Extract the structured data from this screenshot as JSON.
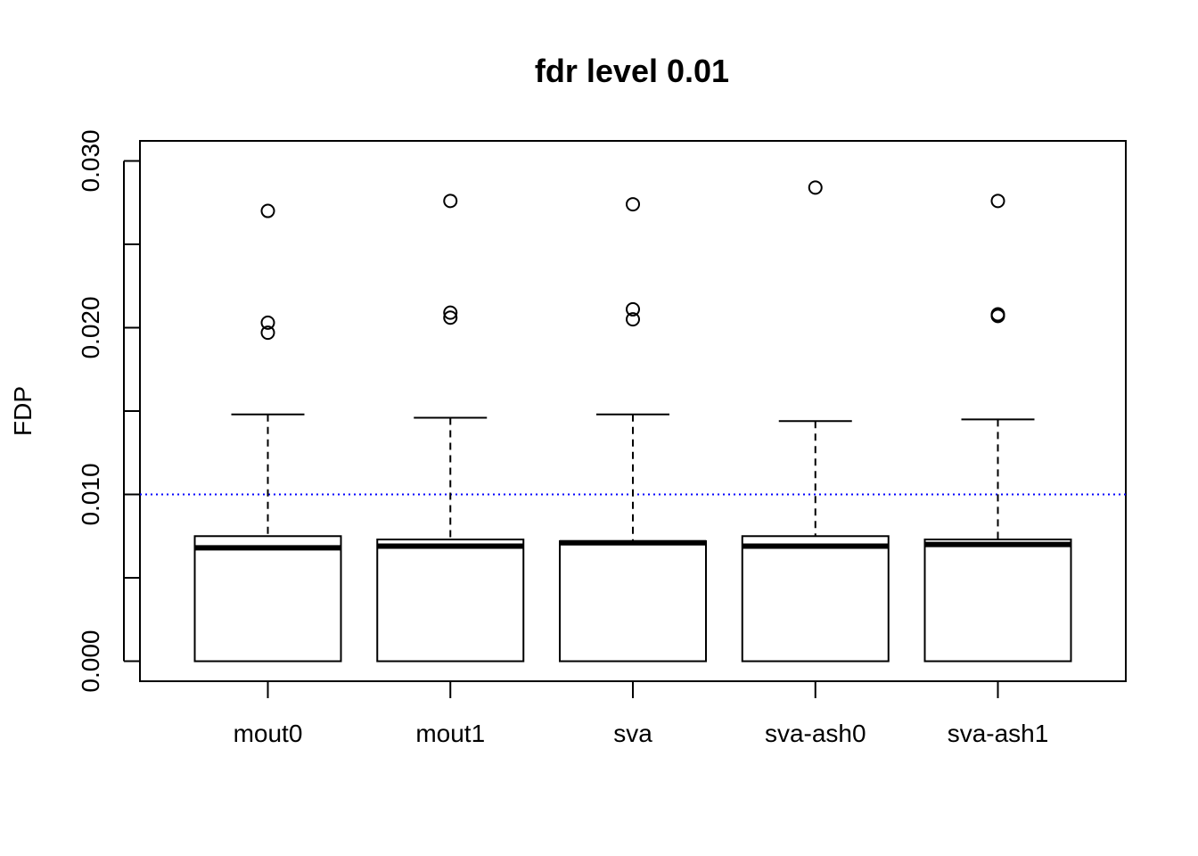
{
  "chart_data": {
    "type": "boxplot",
    "title": "fdr level 0.01",
    "xlabel": "",
    "ylabel": "FDP",
    "categories": [
      "mout0",
      "mout1",
      "sva",
      "sva-ash0",
      "sva-ash1"
    ],
    "ylim": [
      -0.0012,
      0.0312
    ],
    "yticks": [
      0.0,
      0.005,
      0.01,
      0.015,
      0.02,
      0.025,
      0.03
    ],
    "ytick_labels": [
      "0.000",
      "0.010",
      "0.020",
      "0.030"
    ],
    "labeled_yticks": [
      0.0,
      0.01,
      0.02,
      0.03
    ],
    "reference_line": {
      "y": 0.01,
      "color": "#0000ff",
      "style": "dotted"
    },
    "grid": false,
    "boxes": [
      {
        "name": "mout0",
        "whisker_low": 0.0,
        "q1": 0.0,
        "median": 0.0068,
        "q3": 0.0075,
        "whisker_high": 0.0148,
        "outliers": [
          0.0197,
          0.0203,
          0.027
        ]
      },
      {
        "name": "mout1",
        "whisker_low": 0.0,
        "q1": 0.0,
        "median": 0.0069,
        "q3": 0.0073,
        "whisker_high": 0.0146,
        "outliers": [
          0.0206,
          0.0209,
          0.0276
        ]
      },
      {
        "name": "sva",
        "whisker_low": 0.0,
        "q1": 0.0,
        "median": 0.0071,
        "q3": 0.0072,
        "whisker_high": 0.0148,
        "outliers": [
          0.0205,
          0.0211,
          0.0274
        ]
      },
      {
        "name": "sva-ash0",
        "whisker_low": 0.0,
        "q1": 0.0,
        "median": 0.0069,
        "q3": 0.0075,
        "whisker_high": 0.0144,
        "outliers": [
          0.0284
        ]
      },
      {
        "name": "sva-ash1",
        "whisker_low": 0.0,
        "q1": 0.0,
        "median": 0.007,
        "q3": 0.0073,
        "whisker_high": 0.0145,
        "outliers": [
          0.0207,
          0.0208,
          0.0276
        ]
      }
    ],
    "colors": {
      "box_stroke": "#000000",
      "box_fill": "#ffffff",
      "reference_line": "#0000ff"
    }
  }
}
